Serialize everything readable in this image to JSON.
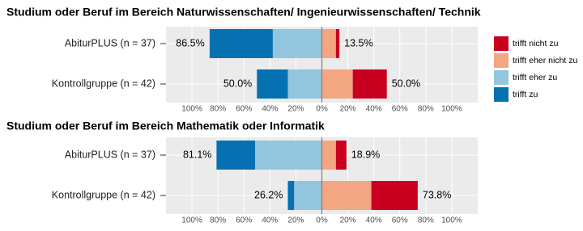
{
  "chart_data": [
    {
      "type": "diverging_bar",
      "title": "Studium oder Beruf im Bereich Naturwissenschaften/ Ingenieurwissenschaften/ Technik",
      "categories": [
        "AbiturPLUS (n = 37)",
        "Kontrollgruppe (n = 42)"
      ],
      "series": [
        {
          "name": "trifft nicht zu",
          "color": "#ca0020",
          "direction": "right",
          "values": [
            2.7,
            26.2
          ]
        },
        {
          "name": "trifft eher nicht zu",
          "color": "#f4a582",
          "direction": "right",
          "values": [
            10.8,
            23.8
          ]
        },
        {
          "name": "trifft eher zu",
          "color": "#92c5de",
          "direction": "left",
          "values": [
            37.8,
            26.2
          ]
        },
        {
          "name": "trifft zu",
          "color": "#0571b0",
          "direction": "left",
          "values": [
            48.6,
            23.8
          ]
        }
      ],
      "left_totals": {
        "values": [
          86.5,
          50.0
        ],
        "value_labels": [
          "86.5%",
          "50.0%"
        ]
      },
      "right_totals": {
        "values": [
          13.5,
          50.0
        ],
        "value_labels": [
          "13.5%",
          "50.0%"
        ]
      },
      "xlim": [
        -120,
        120
      ],
      "xticks": [
        {
          "value": -100,
          "label": "100%"
        },
        {
          "value": -80,
          "label": "80%"
        },
        {
          "value": -60,
          "label": "60%"
        },
        {
          "value": -40,
          "label": "40%"
        },
        {
          "value": -20,
          "label": "20%"
        },
        {
          "value": 0,
          "label": "0%"
        },
        {
          "value": 20,
          "label": "20%"
        },
        {
          "value": 40,
          "label": "40%"
        },
        {
          "value": 60,
          "label": "60%"
        },
        {
          "value": 80,
          "label": "80%"
        },
        {
          "value": 100,
          "label": "100%"
        }
      ],
      "grid": true,
      "legend": "right"
    },
    {
      "type": "diverging_bar",
      "title": "Studium oder Beruf im Bereich Mathematik oder Informatik",
      "categories": [
        "AbiturPLUS (n = 37)",
        "Kontrollgruppe (n = 42)"
      ],
      "series": [
        {
          "color": "#ca0020",
          "direction": "right",
          "values": [
            8.1,
            35.7
          ]
        },
        {
          "color": "#f4a582",
          "direction": "right",
          "values": [
            10.8,
            38.1
          ]
        },
        {
          "color": "#92c5de",
          "direction": "left",
          "values": [
            51.4,
            21.4
          ]
        },
        {
          "color": "#0571b0",
          "direction": "left",
          "values": [
            29.7,
            4.8
          ]
        }
      ],
      "left_totals": {
        "values": [
          81.1,
          26.2
        ],
        "value_labels": [
          "81.1%",
          "26.2%"
        ]
      },
      "right_totals": {
        "values": [
          18.9,
          73.8
        ],
        "value_labels": [
          "18.9%",
          "73.8%"
        ]
      },
      "xlim": [
        -120,
        120
      ],
      "xticks": [
        {
          "value": -100,
          "label": "100%"
        },
        {
          "value": -80,
          "label": "80%"
        },
        {
          "value": -60,
          "label": "60%"
        },
        {
          "value": -40,
          "label": "40%"
        },
        {
          "value": -20,
          "label": "20%"
        },
        {
          "value": 0,
          "label": "0%"
        },
        {
          "value": 20,
          "label": "20%"
        },
        {
          "value": 40,
          "label": "40%"
        },
        {
          "value": 60,
          "label": "60%"
        },
        {
          "value": 80,
          "label": "80%"
        },
        {
          "value": 100,
          "label": "100%"
        }
      ],
      "grid": true
    }
  ]
}
